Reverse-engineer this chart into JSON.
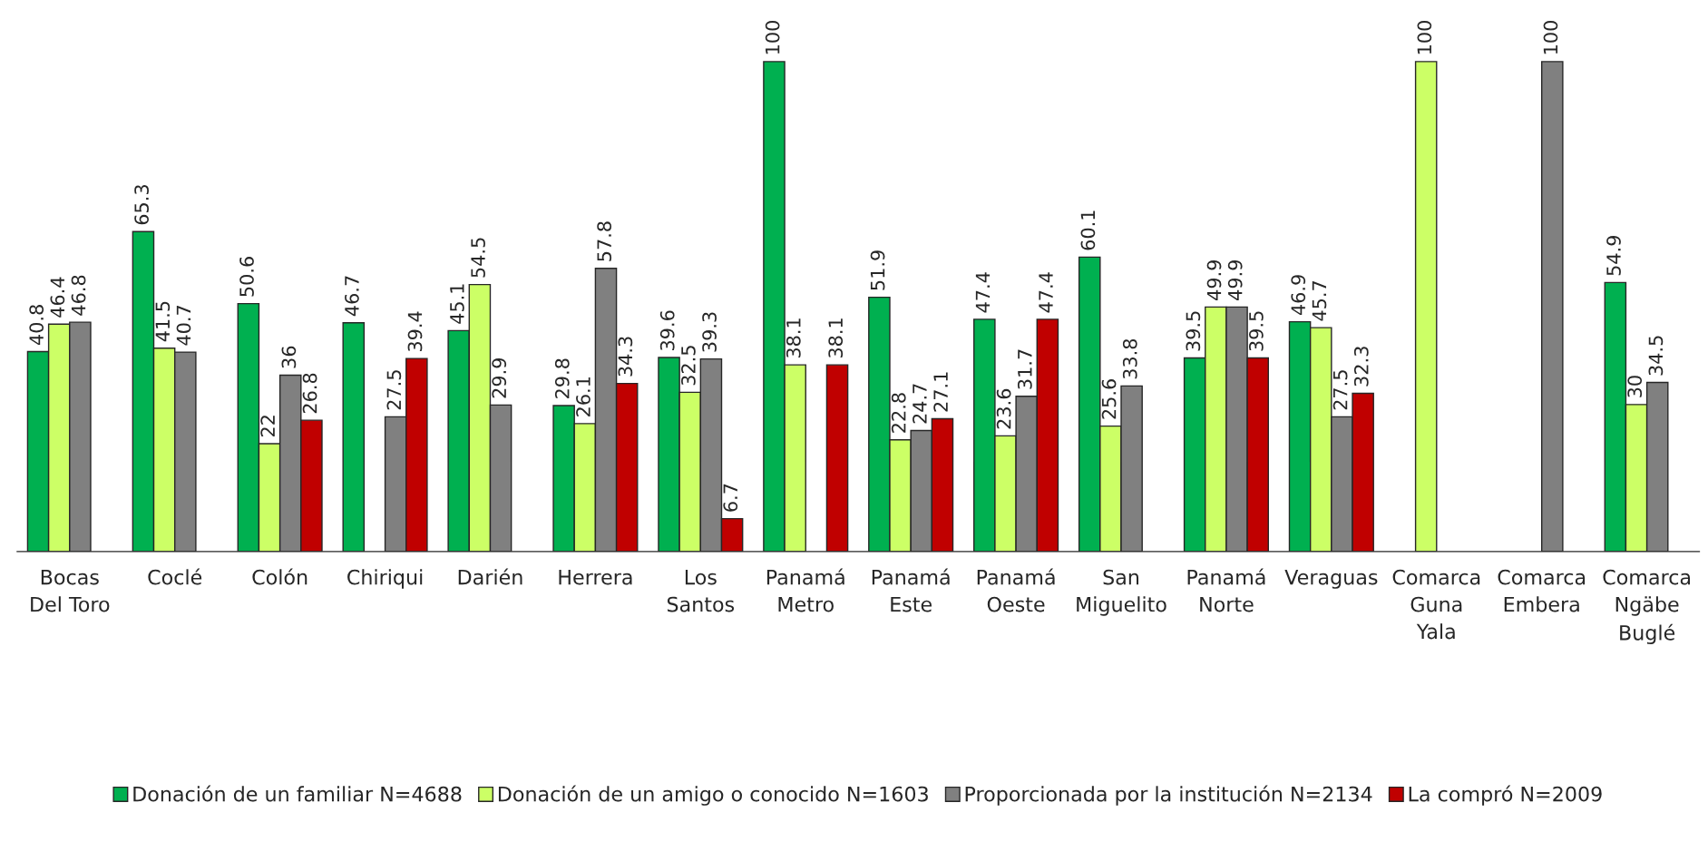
{
  "chart_data": {
    "type": "bar",
    "categories": [
      "Bocas\nDel Toro",
      "Coclé",
      "Colón",
      "Chiriqui",
      "Darién",
      "Herrera",
      "Los\nSantos",
      "Panamá\nMetro",
      "Panamá\nEste",
      "Panamá\nOeste",
      "San\nMiguelito",
      "Panamá\nNorte",
      "Veraguas",
      "Comarca\nGuna\nYala",
      "Comarca\nEmbera",
      "Comarca\nNgäbe\nBuglé"
    ],
    "series": [
      {
        "name": "Donación de un familiar N=4688",
        "color": "#00b050",
        "values": [
          40.8,
          65.3,
          50.6,
          46.7,
          45.1,
          29.8,
          39.6,
          100,
          51.9,
          47.4,
          60.1,
          39.5,
          46.9,
          null,
          null,
          54.9
        ]
      },
      {
        "name": "Donación de un amigo o conocido N=1603",
        "color": "#ccff66",
        "values": [
          46.4,
          41.5,
          22,
          null,
          54.5,
          26.1,
          32.5,
          38.1,
          22.8,
          23.6,
          25.6,
          49.9,
          45.7,
          100,
          null,
          30
        ]
      },
      {
        "name": "Proporcionada por la institución N=2134",
        "color": "#808080",
        "values": [
          46.8,
          40.7,
          36,
          27.5,
          29.9,
          57.8,
          39.3,
          null,
          24.7,
          31.7,
          33.8,
          49.9,
          27.5,
          null,
          100,
          34.5
        ]
      },
      {
        "name": "La compró N=2009",
        "color": "#c00000",
        "values": [
          null,
          null,
          26.8,
          39.4,
          null,
          34.3,
          6.7,
          38.1,
          27.1,
          47.4,
          null,
          39.5,
          32.3,
          null,
          null,
          null
        ]
      }
    ],
    "data_labels": true,
    "legend": "bottom",
    "grid": false
  }
}
